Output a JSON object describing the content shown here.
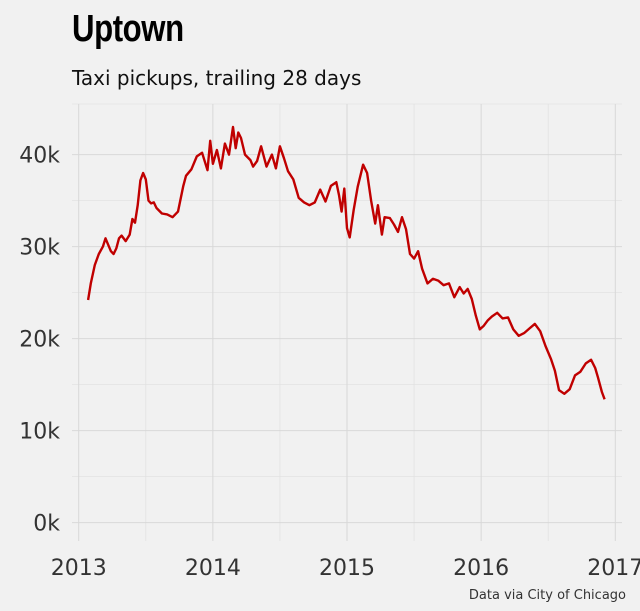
{
  "title": "Uptown",
  "subtitle": "Taxi pickups, trailing 28 days",
  "source": "Data via City of Chicago",
  "colors": {
    "line": "#c00000",
    "background": "#f1f1f1"
  },
  "chart_data": {
    "type": "line",
    "title": "Uptown",
    "subtitle": "Taxi pickups, trailing 28 days",
    "xlabel": "",
    "ylabel": "",
    "xlim": [
      2012.95,
      2017.05
    ],
    "ylim": [
      -2000,
      45500
    ],
    "grid": true,
    "x_ticks": [
      2013,
      2014,
      2015,
      2016,
      2017
    ],
    "x_tick_labels": [
      "2013",
      "2014",
      "2015",
      "2016",
      "2017"
    ],
    "y_ticks": [
      0,
      10000,
      20000,
      30000,
      40000
    ],
    "y_tick_labels": [
      "0k",
      "10k",
      "20k",
      "30k",
      "40k"
    ],
    "series": [
      {
        "x": [
          2013.07,
          2013.09,
          2013.12,
          2013.15,
          2013.18,
          2013.2,
          2013.22,
          2013.24,
          2013.26,
          2013.28,
          2013.3,
          2013.32,
          2013.35,
          2013.38,
          2013.4,
          2013.42,
          2013.44,
          2013.46,
          2013.48,
          2013.5,
          2013.52,
          2013.54,
          2013.56,
          2013.58,
          2013.62,
          2013.66,
          2013.7,
          2013.74,
          2013.78,
          2013.8,
          2013.84,
          2013.88,
          2013.92,
          2013.96,
          2013.98,
          2014.0,
          2014.03,
          2014.06,
          2014.09,
          2014.12,
          2014.15,
          2014.17,
          2014.19,
          2014.21,
          2014.24,
          2014.28,
          2014.3,
          2014.33,
          2014.36,
          2014.4,
          2014.44,
          2014.47,
          2014.5,
          2014.53,
          2014.56,
          2014.6,
          2014.64,
          2014.68,
          2014.72,
          2014.76,
          2014.8,
          2014.84,
          2014.88,
          2014.92,
          2014.94,
          2014.96,
          2014.98,
          2015.0,
          2015.02,
          2015.05,
          2015.08,
          2015.12,
          2015.15,
          2015.18,
          2015.21,
          2015.23,
          2015.26,
          2015.28,
          2015.32,
          2015.35,
          2015.38,
          2015.41,
          2015.44,
          2015.47,
          2015.5,
          2015.53,
          2015.56,
          2015.6,
          2015.64,
          2015.68,
          2015.72,
          2015.76,
          2015.8,
          2015.84,
          2015.87,
          2015.9,
          2015.93,
          2015.96,
          2015.99,
          2016.02,
          2016.05,
          2016.08,
          2016.12,
          2016.16,
          2016.2,
          2016.24,
          2016.28,
          2016.32,
          2016.36,
          2016.4,
          2016.44,
          2016.48,
          2016.52,
          2016.55,
          2016.58,
          2016.62,
          2016.66,
          2016.7,
          2016.74,
          2016.78,
          2016.82,
          2016.85,
          2016.87,
          2016.9,
          2016.92
        ],
        "y": [
          24200,
          26000,
          28000,
          29200,
          30000,
          30900,
          30200,
          29500,
          29200,
          29800,
          30900,
          31200,
          30600,
          31300,
          33000,
          32600,
          34500,
          37200,
          38000,
          37300,
          35000,
          34700,
          34800,
          34200,
          33600,
          33500,
          33200,
          33800,
          36600,
          37700,
          38400,
          39800,
          40200,
          38300,
          41500,
          39000,
          40500,
          38500,
          41200,
          40000,
          43000,
          40700,
          42400,
          41800,
          40000,
          39400,
          38700,
          39300,
          40900,
          38700,
          40000,
          38500,
          40900,
          39600,
          38200,
          37300,
          35300,
          34800,
          34500,
          34800,
          36200,
          34900,
          36600,
          37000,
          35600,
          33800,
          36300,
          32000,
          31000,
          34000,
          36500,
          38900,
          38000,
          35000,
          32500,
          34500,
          31300,
          33200,
          33100,
          32400,
          31600,
          33200,
          31900,
          29200,
          28700,
          29500,
          27600,
          26000,
          26500,
          26300,
          25800,
          26000,
          24500,
          25600,
          24900,
          25400,
          24300,
          22500,
          21000,
          21400,
          22000,
          22400,
          22800,
          22200,
          22300,
          21000,
          20300,
          20600,
          21100,
          21600,
          20800,
          19200,
          17800,
          16500,
          14400,
          14000,
          14500,
          16000,
          16400,
          17300,
          17700,
          16800,
          15800,
          14200,
          13400
        ]
      }
    ]
  }
}
